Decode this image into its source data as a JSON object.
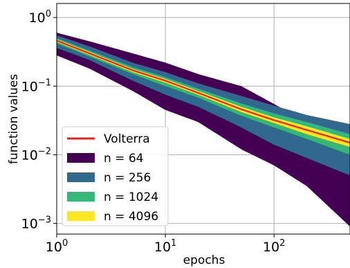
{
  "chart_data": {
    "type": "area",
    "xlabel": "epochs",
    "ylabel": "function values",
    "xscale": "log",
    "yscale": "log",
    "xlim": [
      1,
      500
    ],
    "ylim": [
      0.0007,
      1.6
    ],
    "grid": true,
    "legend_position": "bottom-left",
    "x_ticks": [
      {
        "value": 1,
        "base": "10",
        "exp": "0"
      },
      {
        "value": 10,
        "base": "10",
        "exp": "1"
      },
      {
        "value": 100,
        "base": "10",
        "exp": "2"
      }
    ],
    "y_ticks": [
      {
        "value": 1,
        "base": "10",
        "exp": "0"
      },
      {
        "value": 0.1,
        "base": "10",
        "exp": "−1"
      },
      {
        "value": 0.01,
        "base": "10",
        "exp": "−2"
      },
      {
        "value": 0.001,
        "base": "10",
        "exp": "−3"
      }
    ],
    "x": [
      1,
      2,
      5,
      10,
      20,
      50,
      100,
      200,
      500
    ],
    "line": {
      "name": "Volterra",
      "color": "#e8231a",
      "values": [
        0.46,
        0.3,
        0.17,
        0.12,
        0.08,
        0.046,
        0.032,
        0.023,
        0.015
      ]
    },
    "bands": [
      {
        "name": "n = 64",
        "color": "#440154",
        "lower": [
          0.28,
          0.18,
          0.085,
          0.045,
          0.03,
          0.012,
          0.007,
          0.0035,
          0.0009
        ],
        "upper": [
          0.6,
          0.45,
          0.3,
          0.22,
          0.15,
          0.1,
          0.055,
          0.03,
          0.014
        ]
      },
      {
        "name": "n = 256",
        "color": "#31688e",
        "lower": [
          0.36,
          0.24,
          0.12,
          0.075,
          0.05,
          0.025,
          0.014,
          0.009,
          0.005
        ],
        "upper": [
          0.55,
          0.38,
          0.22,
          0.16,
          0.11,
          0.072,
          0.052,
          0.038,
          0.028
        ]
      },
      {
        "name": "n = 1024",
        "color": "#35b779",
        "lower": [
          0.42,
          0.27,
          0.15,
          0.1,
          0.068,
          0.037,
          0.025,
          0.017,
          0.01
        ],
        "upper": [
          0.5,
          0.33,
          0.19,
          0.135,
          0.092,
          0.056,
          0.04,
          0.03,
          0.02
        ]
      },
      {
        "name": "n = 4096",
        "color": "#fde725",
        "lower": [
          0.44,
          0.285,
          0.16,
          0.112,
          0.075,
          0.042,
          0.029,
          0.02,
          0.013
        ],
        "upper": [
          0.48,
          0.315,
          0.178,
          0.127,
          0.085,
          0.05,
          0.035,
          0.026,
          0.017
        ]
      }
    ]
  }
}
